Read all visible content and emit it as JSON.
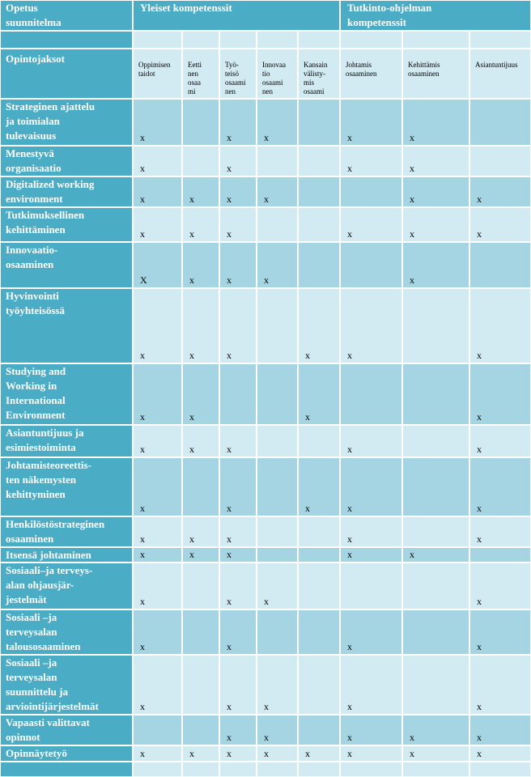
{
  "header": {
    "title": "Opetus\nsuunnitelma",
    "groups": [
      "Yleiset kompetenssit",
      "Tutkinto-ohjelman\nkompetenssit"
    ]
  },
  "table": {
    "corner": "Opintojaksot",
    "columns": [
      "Oppimisen\ntaidot",
      "Eetti\nnen\nosaa\nmi\nnen",
      "Työ-\nteisö\nosaami\nnen",
      "Innovaa\ntio\nosaami\nnen",
      "Kansain\nvälisty-\nmis\nosaami\nnen",
      "Johtamis\nosaaminen",
      "Kehittämis\nosaaminen",
      "Asiantuntijuus"
    ],
    "rows": [
      {
        "label": "Strateginen ajattelu\nja toimialan\ntulevaisuus",
        "cells": [
          "x",
          null,
          "x",
          "x",
          null,
          "x",
          "x",
          null
        ]
      },
      {
        "label": "Menestyvä\norganisaatio",
        "cells": [
          "x",
          null,
          "x",
          null,
          null,
          "x",
          "x",
          null
        ]
      },
      {
        "label": "Digitalized working\nenvironment",
        "cells": [
          "x",
          "x",
          "x",
          "x",
          null,
          null,
          "x",
          "x"
        ]
      },
      {
        "label": "Tutkimuksellinen\nkehittäminen",
        "cells": [
          "x",
          "x",
          "x",
          null,
          null,
          "x",
          "x",
          "x"
        ]
      },
      {
        "label": "Innovaatio-\nosaaminen",
        "cells": [
          "X",
          "x",
          "x",
          "x",
          null,
          null,
          "x",
          null
        ]
      },
      {
        "label": "Hyvinvointi\ntyöyhteisössä",
        "cells": [
          "x",
          "x",
          "x",
          null,
          "x",
          "x",
          null,
          "x"
        ]
      },
      {
        "label": "Studying and\nWorking in\nInternational\nEnvironment",
        "cells": [
          "x",
          "x",
          null,
          null,
          "x",
          null,
          null,
          "x"
        ]
      },
      {
        "label": "Asiantuntijuus ja\nesimiestoiminta",
        "cells": [
          "x",
          "x",
          "x",
          null,
          null,
          "x",
          null,
          "x"
        ]
      },
      {
        "label": "Johtamisteoreettis-\nten näkemysten\nkehittyminen",
        "cells": [
          "x",
          null,
          "x",
          null,
          "x",
          "x",
          null,
          "x"
        ]
      },
      {
        "label": "Henkilöstöstrateginen\nosaaminen",
        "cells": [
          "x",
          "x",
          "x",
          null,
          null,
          "x",
          null,
          "x"
        ]
      },
      {
        "label": "Itsensä johtaminen",
        "cells": [
          "x",
          "x",
          "x",
          null,
          null,
          "x",
          "x",
          null
        ]
      },
      {
        "label": "Sosiaali–ja terveys-\nalan ohjausjär-\njestelmät",
        "cells": [
          "x",
          null,
          "x",
          "x",
          null,
          null,
          null,
          "x"
        ]
      },
      {
        "label": "Sosiaali –ja\nterveysalan\ntalousosaaminen",
        "cells": [
          "x",
          null,
          "x",
          null,
          null,
          "x",
          null,
          "x"
        ]
      },
      {
        "label": "Sosiaali –ja\nterveysalan\nsuunnittelu ja\narviointijärjestelmät",
        "cells": [
          "x",
          null,
          "x",
          "x",
          null,
          "x",
          null,
          "x"
        ]
      },
      {
        "label": "Vapaasti valittavat\nopinnot",
        "cells": [
          null,
          null,
          "x",
          "x",
          null,
          "x",
          "x",
          "x"
        ]
      },
      {
        "label": "Opinnäytetyö",
        "cells": [
          "x",
          "x",
          "x",
          "x",
          "x",
          "x",
          "x",
          "x"
        ]
      }
    ]
  }
}
